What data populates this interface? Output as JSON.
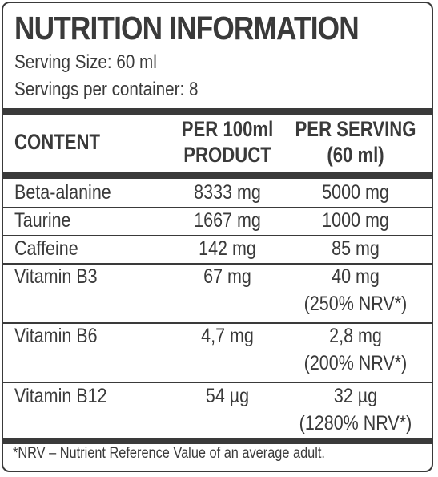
{
  "title": "NUTRITION INFORMATION",
  "serving_size": "Serving Size: 60 ml",
  "servings_per_container": "Servings per container: 8",
  "table": {
    "headers": {
      "content": "CONTENT",
      "per100_line1": "PER 100ml",
      "per100_line2": "PRODUCT",
      "serving_line1": "PER SERVING",
      "serving_line2": "(60 ml)"
    },
    "rows": [
      {
        "name": "Beta-alanine",
        "per100": "8333 mg",
        "serving": "5000 mg",
        "nrv": ""
      },
      {
        "name": "Taurine",
        "per100": "1667 mg",
        "serving": "1000 mg",
        "nrv": ""
      },
      {
        "name": "Caffeine",
        "per100": "142 mg",
        "serving": "85 mg",
        "nrv": ""
      },
      {
        "name": "Vitamin B3",
        "per100": "67 mg",
        "serving": "40 mg",
        "nrv": "(250% NRV*)"
      },
      {
        "name": "Vitamin B6",
        "per100": "4,7 mg",
        "serving": "2,8 mg",
        "nrv": "(200% NRV*)"
      },
      {
        "name": "Vitamin B12",
        "per100": "54 µg",
        "serving": "32 µg",
        "nrv": "(1280% NRV*)"
      }
    ]
  },
  "footnote": "*NRV – Nutrient Reference Value of an average adult."
}
